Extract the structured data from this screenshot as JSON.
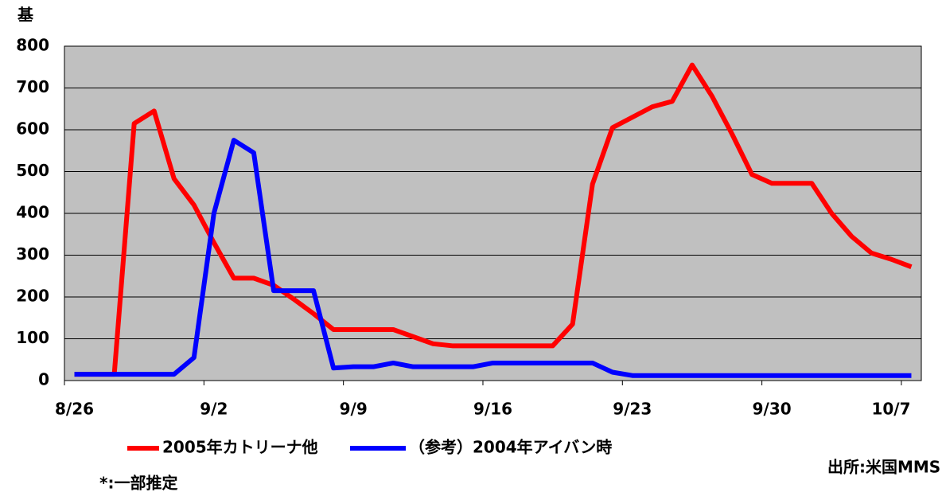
{
  "chart_data": {
    "type": "line",
    "y_label": "基",
    "categories": [
      "8/26",
      null,
      null,
      null,
      null,
      null,
      null,
      "9/2",
      null,
      null,
      null,
      null,
      null,
      null,
      "9/9",
      null,
      null,
      null,
      null,
      null,
      null,
      "9/16",
      null,
      null,
      null,
      null,
      null,
      null,
      "9/23",
      null,
      null,
      null,
      null,
      null,
      null,
      "9/30",
      null,
      null,
      null,
      null,
      null,
      null,
      "10/7"
    ],
    "series": [
      {
        "name": "2005年カトリーナ他",
        "color": "#ff0000",
        "values": [
          15,
          15,
          15,
          615,
          645,
          483,
          420,
          330,
          245,
          245,
          228,
          195,
          160,
          122,
          122,
          122,
          122,
          105,
          88,
          83,
          83,
          83,
          83,
          83,
          83,
          135,
          470,
          605,
          630,
          655,
          668,
          755,
          680,
          590,
          493,
          472,
          472,
          472,
          400,
          345,
          305,
          290,
          272
        ]
      },
      {
        "name": "（参考）2004年アイバン時",
        "color": "#0000ff",
        "values": [
          15,
          15,
          15,
          15,
          15,
          15,
          55,
          400,
          575,
          545,
          215,
          215,
          215,
          30,
          33,
          33,
          42,
          33,
          33,
          33,
          33,
          42,
          42,
          42,
          42,
          42,
          42,
          20,
          12,
          12,
          12,
          12,
          12,
          12,
          12,
          12,
          12,
          12,
          12,
          12,
          12,
          12,
          12
        ]
      }
    ],
    "ylim": [
      0,
      800
    ],
    "yticks": [
      0,
      100,
      200,
      300,
      400,
      500,
      600,
      700,
      800
    ],
    "grid": true,
    "annotations": [
      "出所:米国MMS",
      "*:一部推定"
    ]
  }
}
